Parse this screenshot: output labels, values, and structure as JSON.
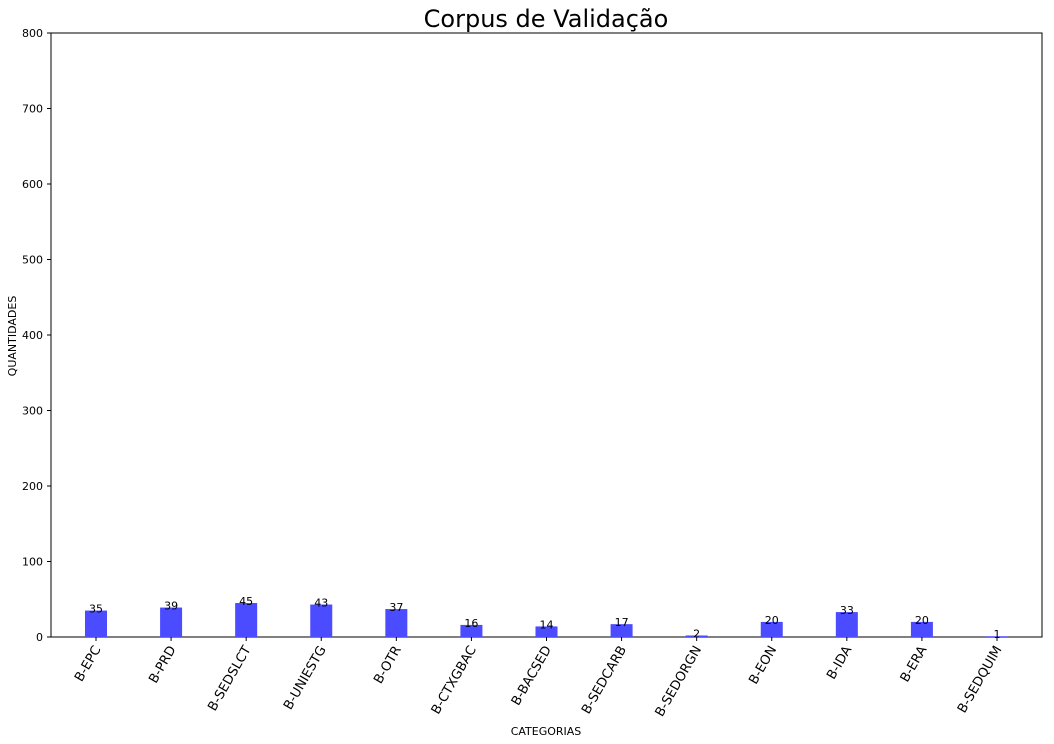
{
  "chart_data": {
    "type": "bar",
    "title": "Corpus de Validação",
    "xlabel": "CATEGORIAS",
    "ylabel": "QUANTIDADES",
    "categories": [
      "B-EPC",
      "B-PRD",
      "B-SEDSLCT",
      "B-UNIESTG",
      "B-OTR",
      "B-CTXGBAC",
      "B-BACSED",
      "B-SEDCARB",
      "B-SEDORGN",
      "B-EON",
      "B-IDA",
      "B-ERA",
      "B-SEDQUIM"
    ],
    "values": [
      35,
      39,
      45,
      43,
      37,
      16,
      14,
      17,
      2,
      20,
      33,
      20,
      1
    ],
    "ylim": [
      0,
      800
    ],
    "yticks": [
      0,
      100,
      200,
      300,
      400,
      500,
      600,
      700,
      800
    ],
    "grid": false,
    "bar_color": "#4b4bff"
  }
}
